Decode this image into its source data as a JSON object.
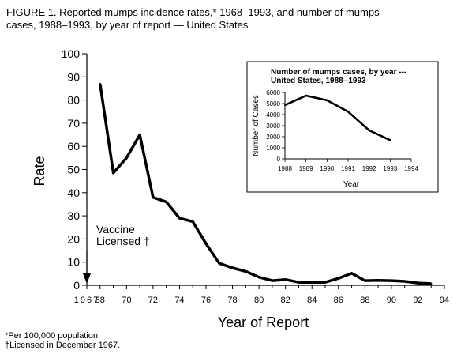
{
  "figure": {
    "title_line1": "FIGURE 1. Reported mumps incidence rates,* 1968–1993, and number of mumps",
    "title_line2": "cases, 1988–1993, by year of report — United States",
    "footnote1": "*Per 100,000 population.",
    "footnote2": "†Licensed in December 1967."
  },
  "chart_data": [
    {
      "type": "line",
      "ylabel": "Rate",
      "xlabel": "Year of Report",
      "xlim": [
        1967,
        1994
      ],
      "ylim": [
        0,
        100
      ],
      "x_ticks": [
        1967,
        1968,
        1970,
        1972,
        1974,
        1976,
        1978,
        1980,
        1982,
        1984,
        1986,
        1988,
        1990,
        1992,
        1994
      ],
      "x_tick_labels": [
        "1967",
        "68",
        "70",
        "72",
        "74",
        "76",
        "78",
        "80",
        "82",
        "84",
        "86",
        "88",
        "90",
        "92",
        "94"
      ],
      "y_ticks": [
        0,
        10,
        20,
        30,
        40,
        50,
        60,
        70,
        80,
        90,
        100
      ],
      "x": [
        1968,
        1969,
        1970,
        1971,
        1972,
        1973,
        1974,
        1975,
        1976,
        1977,
        1978,
        1979,
        1980,
        1981,
        1982,
        1983,
        1984,
        1985,
        1986,
        1987,
        1988,
        1989,
        1990,
        1991,
        1992,
        1993
      ],
      "y": [
        87,
        48.5,
        55,
        65,
        38,
        36,
        29,
        27.5,
        18,
        9.5,
        7.5,
        6,
        3.5,
        2,
        2.5,
        1.3,
        1.3,
        1.3,
        3,
        5.2,
        2,
        2.1,
        2,
        1.7,
        1,
        0.7
      ],
      "annotation": {
        "line1": "Vaccine",
        "line2": "Licensed †",
        "year": 1967
      }
    },
    {
      "type": "line",
      "title_line1": "Number of mumps cases, by year ---",
      "title_line2": "United States, 1988--1993",
      "ylabel": "Number of Cases",
      "xlabel": "Year",
      "xlim": [
        1988,
        1994
      ],
      "ylim": [
        0,
        6000
      ],
      "x_ticks": [
        1988,
        1989,
        1990,
        1991,
        1992,
        1993,
        1994
      ],
      "y_ticks": [
        0,
        1000,
        2000,
        3000,
        4000,
        5000,
        6000
      ],
      "x": [
        1988,
        1989,
        1990,
        1991,
        1992,
        1993
      ],
      "y": [
        4866,
        5712,
        5292,
        4264,
        2572,
        1692
      ]
    }
  ]
}
